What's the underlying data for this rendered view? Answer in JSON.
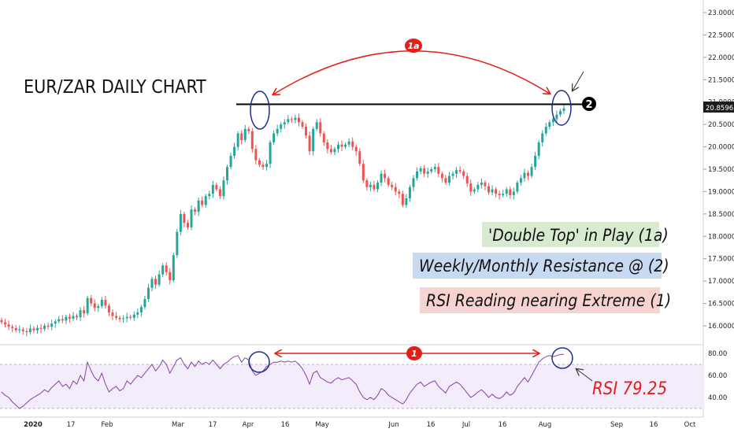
{
  "chart_data": {
    "type": "candlestick",
    "title": "EUR/ZAR DAILY CHART",
    "price_axis": {
      "range": [
        15.7,
        23.2
      ],
      "ticks": [
        "23.00000",
        "22.50000",
        "22.00000",
        "21.50000",
        "21.00000",
        "20.50000",
        "20.00000",
        "19.50000",
        "19.00000",
        "18.50000",
        "18.00000",
        "17.50000",
        "17.00000",
        "16.50000",
        "16.00000"
      ],
      "current_price": "20.85963"
    },
    "rsi_axis": {
      "range": [
        30,
        88
      ],
      "ticks": [
        "80.00",
        "60.00",
        "40.00"
      ],
      "band": [
        30,
        70
      ]
    },
    "x_labels": [
      "2020",
      "17",
      "Feb",
      "Mar",
      "17",
      "Apr",
      "16",
      "May",
      "Jun",
      "16",
      "Jul",
      "16",
      "Aug",
      "Sep",
      "16",
      "Oct"
    ],
    "resistance_level": 20.95,
    "annotations": {
      "double_top_marker": "1a",
      "resistance_marker": "2",
      "rsi_marker": "1",
      "rsi_reading": "RSI 79.25"
    },
    "notes": [
      {
        "text": "'Double Top' in Play (1a)",
        "color": "#d8ead0"
      },
      {
        "text": "Weekly/Monthly Resistance @ (2)",
        "color": "#c8daf2"
      },
      {
        "text": "RSI Reading nearing Extreme (1)",
        "color": "#f6d3d1"
      }
    ],
    "closes": [
      16.08,
      16.03,
      15.98,
      15.95,
      15.9,
      15.92,
      15.88,
      15.86,
      15.94,
      15.9,
      15.95,
      15.93,
      16.0,
      15.98,
      16.05,
      16.1,
      16.15,
      16.12,
      16.2,
      16.16,
      16.22,
      16.19,
      16.35,
      16.28,
      16.62,
      16.5,
      16.4,
      16.44,
      16.58,
      16.45,
      16.3,
      16.22,
      16.18,
      16.15,
      16.17,
      16.2,
      16.18,
      16.25,
      16.3,
      16.42,
      16.6,
      16.85,
      17.05,
      16.92,
      17.15,
      17.35,
      17.2,
      17.02,
      17.58,
      18.1,
      18.5,
      18.3,
      18.2,
      18.6,
      18.55,
      18.8,
      18.7,
      18.9,
      18.95,
      19.15,
      19.05,
      18.9,
      19.25,
      19.55,
      19.8,
      20.0,
      20.3,
      20.15,
      20.4,
      20.35,
      19.95,
      19.7,
      19.6,
      19.55,
      19.62,
      20.1,
      20.3,
      20.4,
      20.5,
      20.55,
      20.62,
      20.6,
      20.65,
      20.55,
      20.45,
      20.25,
      19.9,
      20.4,
      20.55,
      20.3,
      20.1,
      19.95,
      19.88,
      19.95,
      20.05,
      20.0,
      20.05,
      20.12,
      20.0,
      19.9,
      19.62,
      19.25,
      19.1,
      19.15,
      19.05,
      19.2,
      19.4,
      19.3,
      19.15,
      19.1,
      19.0,
      18.95,
      18.7,
      18.85,
      19.1,
      19.3,
      19.45,
      19.52,
      19.4,
      19.45,
      19.5,
      19.55,
      19.4,
      19.3,
      19.2,
      19.35,
      19.4,
      19.48,
      19.45,
      19.35,
      19.18,
      19.0,
      19.05,
      19.15,
      19.2,
      19.12,
      18.98,
      19.05,
      18.95,
      18.92,
      18.95,
      19.05,
      18.92,
      19.0,
      19.2,
      19.3,
      19.42,
      19.35,
      19.55,
      19.8,
      20.1,
      20.3,
      20.45,
      20.55,
      20.62,
      20.72,
      20.8,
      20.86
    ],
    "rsi": [
      45,
      42,
      40,
      36,
      33,
      30,
      32,
      35,
      38,
      40,
      42,
      44,
      47,
      45,
      49,
      52,
      55,
      50,
      52,
      48,
      55,
      52,
      60,
      55,
      72,
      64,
      58,
      55,
      62,
      52,
      45,
      48,
      50,
      46,
      48,
      55,
      52,
      56,
      60,
      58,
      62,
      66,
      70,
      64,
      68,
      74,
      70,
      62,
      68,
      74,
      76,
      70,
      66,
      72,
      68,
      73,
      70,
      72,
      70,
      74,
      70,
      66,
      70,
      72,
      75,
      77,
      78,
      72,
      76,
      74,
      64,
      60,
      62,
      64,
      68,
      70,
      72,
      72,
      73,
      72,
      73,
      72,
      73,
      70,
      66,
      60,
      52,
      62,
      64,
      58,
      56,
      54,
      53,
      56,
      58,
      56,
      57,
      58,
      55,
      52,
      45,
      40,
      38,
      40,
      38,
      42,
      48,
      46,
      42,
      40,
      38,
      36,
      34,
      38,
      44,
      48,
      52,
      54,
      50,
      52,
      54,
      55,
      50,
      47,
      44,
      50,
      52,
      54,
      52,
      48,
      44,
      40,
      42,
      45,
      47,
      44,
      40,
      43,
      40,
      39,
      41,
      45,
      42,
      44,
      50,
      54,
      58,
      54,
      60,
      66,
      72,
      75,
      77,
      78,
      77,
      78,
      79,
      79.25
    ]
  }
}
